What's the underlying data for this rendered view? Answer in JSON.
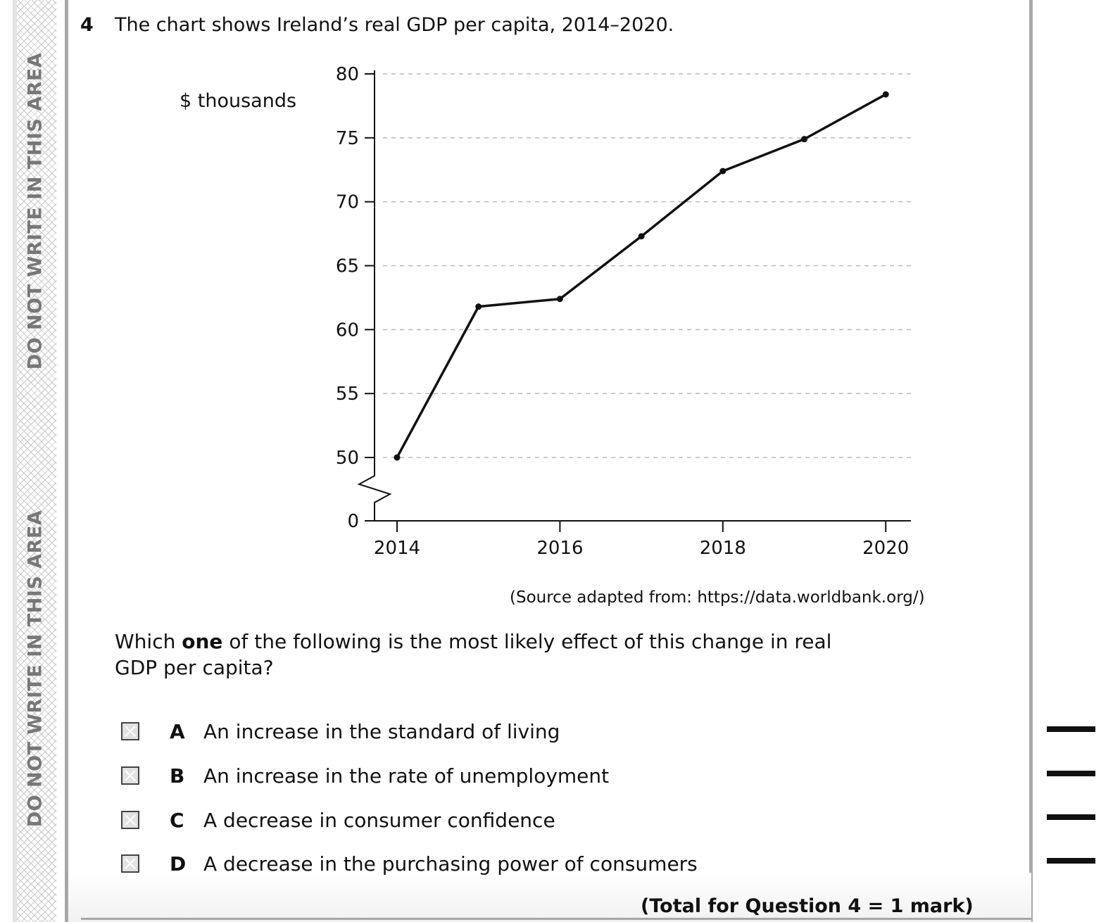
{
  "margin": {
    "warning": "DO NOT WRITE IN THIS AREA"
  },
  "question": {
    "number": "4",
    "text": "The chart shows Ireland’s real GDP per capita, 2014–2020.",
    "prompt_before": "Which ",
    "prompt_bold": "one",
    "prompt_after": " of the following is the most likely effect of this change in real GDP per capita?",
    "source": "(Source adapted from: https://data.worldbank.org/)",
    "options": [
      {
        "letter": "A",
        "text": "An increase in the standard of living"
      },
      {
        "letter": "B",
        "text": "An increase in the rate of unemployment"
      },
      {
        "letter": "C",
        "text": "A decrease in consumer confidence"
      },
      {
        "letter": "D",
        "text": "A decrease in the purchasing power of consumers"
      }
    ],
    "total": "(Total for Question 4 = 1 mark)"
  },
  "chart_data": {
    "type": "line",
    "title": "Ireland’s real GDP per capita, 2014–2020",
    "ylabel": "$ thousands",
    "xlabel": "",
    "x": [
      2014,
      2015,
      2016,
      2017,
      2018,
      2019,
      2020
    ],
    "values": [
      50,
      61.8,
      62.4,
      67.3,
      72.4,
      74.9,
      78.4
    ],
    "xticks": [
      "2014",
      "2016",
      "2018",
      "2020"
    ],
    "yticks": [
      "0",
      "50",
      "55",
      "60",
      "65",
      "70",
      "75",
      "80"
    ],
    "ylim": [
      50,
      80
    ],
    "axis_break": true,
    "grid": "dashed horizontal"
  }
}
